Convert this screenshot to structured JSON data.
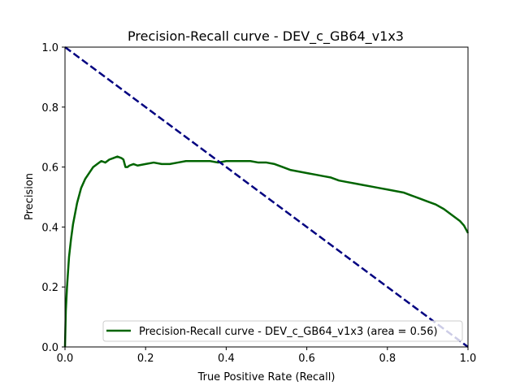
{
  "chart_data": {
    "type": "line",
    "title": "Precision-Recall curve - DEV_c_GB64_v1x3",
    "xlabel": "True Positive Rate (Recall)",
    "ylabel": "Precision",
    "xlim": [
      0,
      1
    ],
    "ylim": [
      0,
      1
    ],
    "x_ticks": [
      "0.0",
      "0.2",
      "0.4",
      "0.6",
      "0.8",
      "1.0"
    ],
    "y_ticks": [
      "0.0",
      "0.2",
      "0.4",
      "0.6",
      "0.8",
      "1.0"
    ],
    "grid": false,
    "legend": {
      "position": "lower right",
      "entries": [
        "Precision-Recall curve - DEV_c_GB64_v1x3 (area = 0.56)"
      ]
    },
    "colors": {
      "pr_curve": "#006400",
      "diagonal": "#000080"
    },
    "series": [
      {
        "name": "Precision-Recall curve - DEV_c_GB64_v1x3 (area = 0.56)",
        "style": "solid",
        "color": "#006400",
        "x": [
          0.0,
          0.002,
          0.005,
          0.01,
          0.015,
          0.02,
          0.03,
          0.04,
          0.05,
          0.06,
          0.07,
          0.08,
          0.09,
          0.1,
          0.11,
          0.12,
          0.13,
          0.14,
          0.145,
          0.15,
          0.155,
          0.16,
          0.17,
          0.18,
          0.2,
          0.22,
          0.24,
          0.26,
          0.28,
          0.3,
          0.32,
          0.34,
          0.36,
          0.38,
          0.4,
          0.42,
          0.44,
          0.46,
          0.48,
          0.5,
          0.52,
          0.54,
          0.56,
          0.58,
          0.6,
          0.62,
          0.64,
          0.66,
          0.68,
          0.7,
          0.72,
          0.74,
          0.76,
          0.78,
          0.8,
          0.82,
          0.84,
          0.86,
          0.88,
          0.9,
          0.92,
          0.94,
          0.96,
          0.98,
          0.99,
          1.0
        ],
        "y": [
          0.0,
          0.12,
          0.2,
          0.3,
          0.36,
          0.41,
          0.48,
          0.53,
          0.56,
          0.58,
          0.6,
          0.61,
          0.62,
          0.615,
          0.625,
          0.63,
          0.635,
          0.63,
          0.625,
          0.6,
          0.6,
          0.605,
          0.61,
          0.605,
          0.61,
          0.615,
          0.61,
          0.61,
          0.615,
          0.62,
          0.62,
          0.62,
          0.62,
          0.615,
          0.62,
          0.62,
          0.62,
          0.62,
          0.615,
          0.615,
          0.61,
          0.6,
          0.59,
          0.585,
          0.58,
          0.575,
          0.57,
          0.565,
          0.555,
          0.55,
          0.545,
          0.54,
          0.535,
          0.53,
          0.525,
          0.52,
          0.515,
          0.505,
          0.495,
          0.485,
          0.475,
          0.46,
          0.44,
          0.42,
          0.405,
          0.38
        ]
      },
      {
        "name": "",
        "style": "dashed",
        "color": "#000080",
        "x": [
          0,
          1
        ],
        "y": [
          1,
          0
        ]
      }
    ]
  }
}
